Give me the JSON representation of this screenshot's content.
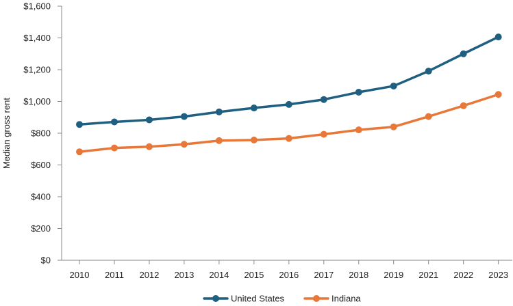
{
  "chart_data": {
    "type": "line",
    "title": "",
    "xlabel": "",
    "ylabel": "Median gross rent",
    "categories": [
      "2010",
      "2011",
      "2012",
      "2013",
      "2014",
      "2015",
      "2016",
      "2017",
      "2018",
      "2019",
      "2021",
      "2022",
      "2023"
    ],
    "ylim": [
      0,
      1600
    ],
    "yticks": [
      0,
      200,
      400,
      600,
      800,
      1000,
      1200,
      1400,
      1600
    ],
    "ytick_labels": [
      "$0",
      "$200",
      "$400",
      "$600",
      "$800",
      "$1,000",
      "$1,200",
      "$1,400",
      "$1,600"
    ],
    "grid": false,
    "legend_position": "bottom",
    "series": [
      {
        "name": "United States",
        "color": "#1f5f7f",
        "values": [
          855,
          871,
          884,
          905,
          934,
          959,
          981,
          1012,
          1058,
          1097,
          1191,
          1300,
          1406
        ]
      },
      {
        "name": "Indiana",
        "color": "#e8783a",
        "values": [
          683,
          707,
          715,
          730,
          753,
          757,
          767,
          793,
          821,
          840,
          905,
          973,
          1044
        ]
      }
    ]
  }
}
